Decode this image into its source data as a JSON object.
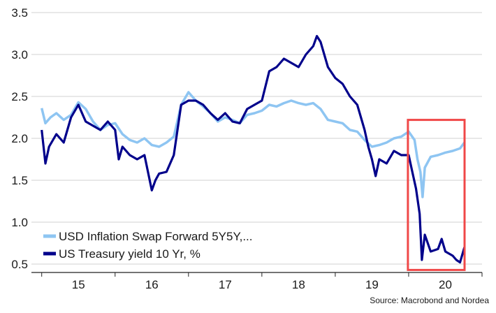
{
  "chart_data": {
    "type": "line",
    "title": "",
    "xlabel": "",
    "ylabel": "",
    "ylim": [
      0.4,
      3.6
    ],
    "xlim": [
      2014.86,
      2021.0
    ],
    "yticks": [
      "0.5",
      "1.0",
      "1.5",
      "2.0",
      "2.5",
      "3.0",
      "3.5"
    ],
    "xticks": [
      {
        "label": "15",
        "x": 2015.5
      },
      {
        "label": "16",
        "x": 2016.5
      },
      {
        "label": "17",
        "x": 2017.5
      },
      {
        "label": "18",
        "x": 2018.5
      },
      {
        "label": "19",
        "x": 2019.5
      },
      {
        "label": "20",
        "x": 2020.5
      }
    ],
    "grid": "horizontal",
    "legend": "bottom-left",
    "series": [
      {
        "name": "USD Inflation Swap Forward 5Y5Y,...",
        "color": "#8ec5f2",
        "points": [
          [
            2015.0,
            2.36
          ],
          [
            2015.05,
            2.18
          ],
          [
            2015.12,
            2.25
          ],
          [
            2015.2,
            2.3
          ],
          [
            2015.3,
            2.22
          ],
          [
            2015.4,
            2.28
          ],
          [
            2015.5,
            2.43
          ],
          [
            2015.6,
            2.35
          ],
          [
            2015.7,
            2.2
          ],
          [
            2015.8,
            2.1
          ],
          [
            2015.9,
            2.16
          ],
          [
            2016.0,
            2.18
          ],
          [
            2016.1,
            2.05
          ],
          [
            2016.2,
            1.98
          ],
          [
            2016.3,
            1.95
          ],
          [
            2016.4,
            2.0
          ],
          [
            2016.5,
            1.92
          ],
          [
            2016.6,
            1.9
          ],
          [
            2016.7,
            1.95
          ],
          [
            2016.8,
            2.02
          ],
          [
            2016.9,
            2.4
          ],
          [
            2017.0,
            2.55
          ],
          [
            2017.1,
            2.45
          ],
          [
            2017.2,
            2.38
          ],
          [
            2017.3,
            2.3
          ],
          [
            2017.4,
            2.2
          ],
          [
            2017.5,
            2.25
          ],
          [
            2017.6,
            2.22
          ],
          [
            2017.7,
            2.18
          ],
          [
            2017.8,
            2.28
          ],
          [
            2017.9,
            2.3
          ],
          [
            2018.0,
            2.33
          ],
          [
            2018.1,
            2.4
          ],
          [
            2018.2,
            2.38
          ],
          [
            2018.3,
            2.42
          ],
          [
            2018.4,
            2.45
          ],
          [
            2018.5,
            2.42
          ],
          [
            2018.6,
            2.4
          ],
          [
            2018.7,
            2.42
          ],
          [
            2018.8,
            2.35
          ],
          [
            2018.9,
            2.22
          ],
          [
            2019.0,
            2.2
          ],
          [
            2019.1,
            2.18
          ],
          [
            2019.2,
            2.1
          ],
          [
            2019.3,
            2.08
          ],
          [
            2019.4,
            1.98
          ],
          [
            2019.5,
            1.9
          ],
          [
            2019.6,
            1.92
          ],
          [
            2019.7,
            1.95
          ],
          [
            2019.8,
            2.0
          ],
          [
            2019.9,
            2.02
          ],
          [
            2020.0,
            2.08
          ],
          [
            2020.08,
            1.98
          ],
          [
            2020.12,
            1.75
          ],
          [
            2020.16,
            1.6
          ],
          [
            2020.19,
            1.3
          ],
          [
            2020.22,
            1.65
          ],
          [
            2020.3,
            1.78
          ],
          [
            2020.4,
            1.8
          ],
          [
            2020.5,
            1.83
          ],
          [
            2020.6,
            1.85
          ],
          [
            2020.7,
            1.88
          ],
          [
            2020.76,
            1.95
          ]
        ]
      },
      {
        "name": "US Treasury yield 10 Yr, %",
        "color": "#00008b",
        "points": [
          [
            2015.0,
            2.1
          ],
          [
            2015.05,
            1.7
          ],
          [
            2015.1,
            1.9
          ],
          [
            2015.2,
            2.05
          ],
          [
            2015.3,
            1.95
          ],
          [
            2015.4,
            2.25
          ],
          [
            2015.5,
            2.4
          ],
          [
            2015.6,
            2.2
          ],
          [
            2015.7,
            2.15
          ],
          [
            2015.8,
            2.1
          ],
          [
            2015.9,
            2.2
          ],
          [
            2016.0,
            2.1
          ],
          [
            2016.05,
            1.75
          ],
          [
            2016.1,
            1.9
          ],
          [
            2016.2,
            1.8
          ],
          [
            2016.3,
            1.75
          ],
          [
            2016.4,
            1.8
          ],
          [
            2016.5,
            1.38
          ],
          [
            2016.55,
            1.5
          ],
          [
            2016.6,
            1.58
          ],
          [
            2016.7,
            1.6
          ],
          [
            2016.8,
            1.8
          ],
          [
            2016.9,
            2.4
          ],
          [
            2017.0,
            2.45
          ],
          [
            2017.1,
            2.45
          ],
          [
            2017.2,
            2.4
          ],
          [
            2017.3,
            2.3
          ],
          [
            2017.4,
            2.22
          ],
          [
            2017.5,
            2.3
          ],
          [
            2017.6,
            2.2
          ],
          [
            2017.7,
            2.18
          ],
          [
            2017.8,
            2.35
          ],
          [
            2017.9,
            2.4
          ],
          [
            2018.0,
            2.45
          ],
          [
            2018.1,
            2.8
          ],
          [
            2018.2,
            2.85
          ],
          [
            2018.3,
            2.95
          ],
          [
            2018.4,
            2.9
          ],
          [
            2018.5,
            2.85
          ],
          [
            2018.6,
            3.0
          ],
          [
            2018.7,
            3.1
          ],
          [
            2018.75,
            3.22
          ],
          [
            2018.8,
            3.15
          ],
          [
            2018.9,
            2.85
          ],
          [
            2019.0,
            2.72
          ],
          [
            2019.1,
            2.65
          ],
          [
            2019.2,
            2.5
          ],
          [
            2019.3,
            2.4
          ],
          [
            2019.4,
            2.1
          ],
          [
            2019.45,
            1.9
          ],
          [
            2019.5,
            1.75
          ],
          [
            2019.55,
            1.55
          ],
          [
            2019.6,
            1.75
          ],
          [
            2019.7,
            1.7
          ],
          [
            2019.8,
            1.85
          ],
          [
            2019.9,
            1.8
          ],
          [
            2020.0,
            1.8
          ],
          [
            2020.05,
            1.6
          ],
          [
            2020.1,
            1.4
          ],
          [
            2020.15,
            1.1
          ],
          [
            2020.18,
            0.55
          ],
          [
            2020.22,
            0.85
          ],
          [
            2020.3,
            0.65
          ],
          [
            2020.4,
            0.68
          ],
          [
            2020.45,
            0.8
          ],
          [
            2020.5,
            0.65
          ],
          [
            2020.6,
            0.6
          ],
          [
            2020.65,
            0.55
          ],
          [
            2020.7,
            0.52
          ],
          [
            2020.76,
            0.7
          ]
        ]
      }
    ],
    "highlight_box": {
      "x": [
        2019.99,
        2021.0
      ],
      "y": [
        0.43,
        2.22
      ],
      "color": "#f04848"
    },
    "source": "Source: Macrobond and Nordea"
  }
}
